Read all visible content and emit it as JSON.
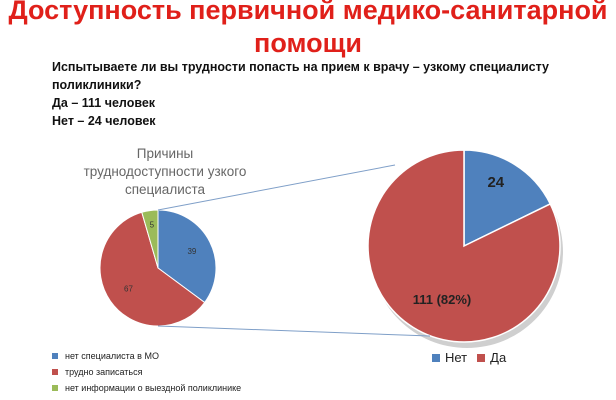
{
  "header": {
    "title_line1": "Доступность первичной медико-санитарной",
    "title_line2": "помощи"
  },
  "question": {
    "text": "Испытываете ли вы трудности попасть на прием к врачу – узкому специалисту поликлиники?",
    "yes": "Да – 111 человек",
    "no": "Нет – 24 человек"
  },
  "colors": {
    "blue": "#4f81bd",
    "red": "#c0504d",
    "green": "#9bbb59",
    "connector": "#7f9fc8"
  },
  "chart_data": [
    {
      "type": "pie",
      "title_lines": [
        "Причины",
        "трудно­доступности узкого",
        "специалиста"
      ],
      "categories": [
        "нет специалиста в МО",
        "трудно записаться",
        "нет информации о выездной поликлинике"
      ],
      "values": [
        39,
        67,
        5
      ],
      "data_labels": [
        "39",
        "67",
        "5"
      ],
      "legend": "bottom-left"
    },
    {
      "type": "pie",
      "categories": [
        "Нет",
        "Да"
      ],
      "values": [
        24,
        111
      ],
      "data_labels": [
        "24",
        "111 (82%)"
      ],
      "legend": "bottom"
    }
  ]
}
